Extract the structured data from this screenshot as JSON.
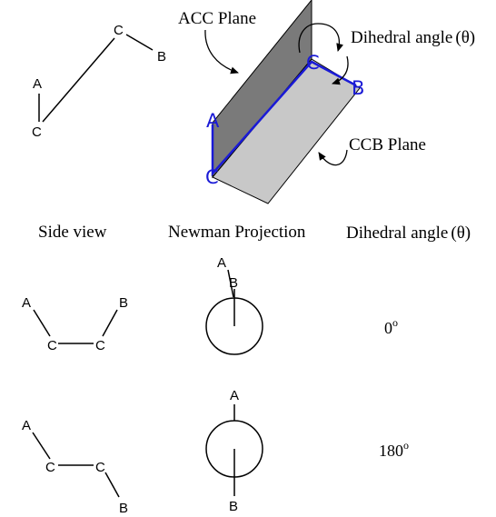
{
  "top": {
    "side_view_atoms": [
      "A",
      "C",
      "C",
      "B"
    ],
    "plane_atoms": [
      "A",
      "C",
      "C",
      "B"
    ],
    "acc_plane_label": "ACC Plane",
    "ccb_plane_label": "CCB Plane",
    "dihedral_label": "Dihedral angle",
    "theta": "(θ)"
  },
  "headers": {
    "side_view": "Side view",
    "newman": "Newman Projection",
    "dihedral": "Dihedral angle",
    "theta": "(θ)"
  },
  "rows": [
    {
      "side_atoms": [
        "A",
        "C",
        "C",
        "B"
      ],
      "newman_front": "A",
      "newman_back": "B",
      "angle_number": "0",
      "angle_unit": "o"
    },
    {
      "side_atoms": [
        "A",
        "C",
        "C",
        "B"
      ],
      "newman_front": "A",
      "newman_back": "B",
      "angle_number": "180",
      "angle_unit": "o"
    }
  ],
  "colors": {
    "acc_plane": "#7a7a7a",
    "ccb_plane": "#c8c8c8",
    "bond_highlight": "#1a1ad6"
  }
}
